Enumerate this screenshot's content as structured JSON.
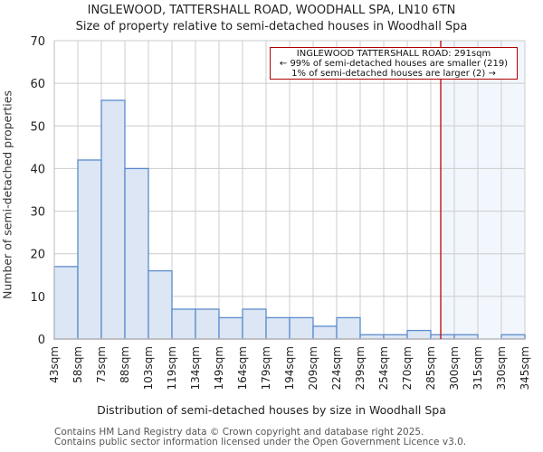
{
  "header": {
    "title": "INGLEWOOD, TATTERSHALL ROAD, WOODHALL SPA, LN10 6TN",
    "subtitle": "Size of property relative to semi-detached houses in Woodhall Spa"
  },
  "annotation": {
    "line1": "INGLEWOOD TATTERSHALL ROAD: 291sqm",
    "line2": "← 99% of semi-detached houses are smaller (219)",
    "line3": "1% of semi-detached houses are larger (2) →"
  },
  "footer": {
    "line1": "Contains HM Land Registry data © Crown copyright and database right 2025.",
    "line2": "Contains public sector information licensed under the Open Government Licence v3.0."
  },
  "colors": {
    "bar_fill": "#dce6f4",
    "bar_edge": "#5b8ccc",
    "marker": "#c00000",
    "highlight": "#f2f6fd",
    "grid": "#cccccc"
  },
  "chart_data": {
    "type": "bar",
    "title": "INGLEWOOD, TATTERSHALL ROAD, WOODHALL SPA, LN10 6TN",
    "subtitle": "Size of property relative to semi-detached houses in Woodhall Spa",
    "xlabel": "Distribution of semi-detached houses by size in Woodhall Spa",
    "ylabel": "Number of semi-detached properties",
    "categories": [
      "43sqm",
      "58sqm",
      "73sqm",
      "88sqm",
      "103sqm",
      "119sqm",
      "134sqm",
      "149sqm",
      "164sqm",
      "179sqm",
      "194sqm",
      "209sqm",
      "224sqm",
      "239sqm",
      "254sqm",
      "270sqm",
      "285sqm",
      "300sqm",
      "315sqm",
      "330sqm",
      "345sqm"
    ],
    "values": [
      17,
      42,
      56,
      40,
      16,
      7,
      7,
      5,
      7,
      5,
      5,
      3,
      5,
      1,
      1,
      2,
      1,
      1,
      0,
      1
    ],
    "ylim": [
      0,
      70
    ],
    "yticks": [
      0,
      10,
      20,
      30,
      40,
      50,
      60,
      70
    ],
    "grid": true,
    "marker": {
      "value_sqm": 291,
      "label": "INGLEWOOD TATTERSHALL ROAD: 291sqm"
    }
  }
}
